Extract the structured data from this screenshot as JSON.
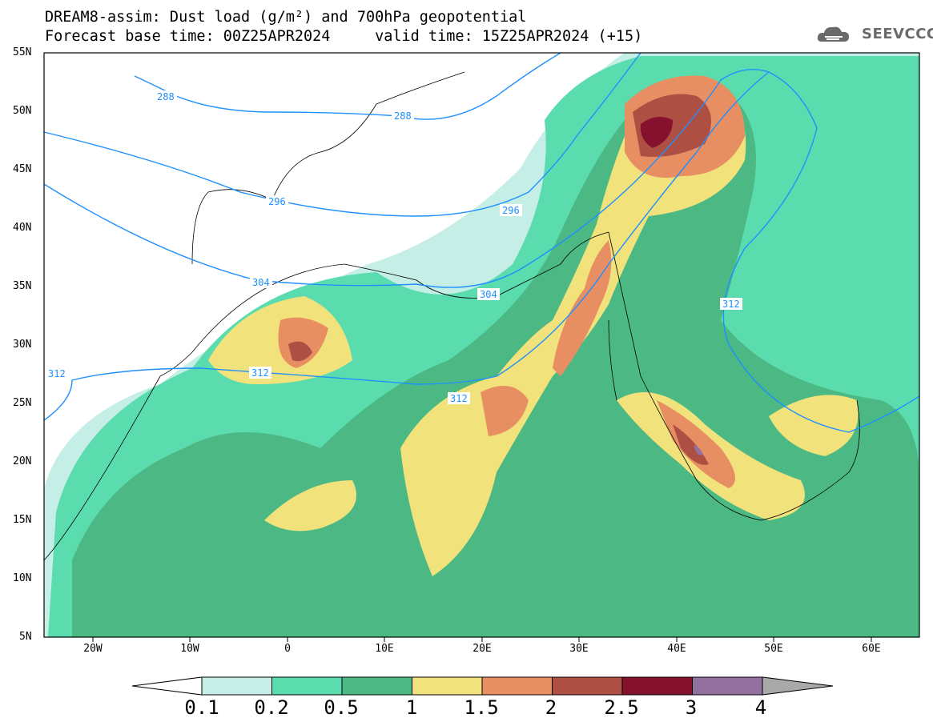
{
  "header": {
    "line1": "DREAM8-assim: Dust load (g/m²) and 700hPa geopotential",
    "line2": "Forecast base time: 00Z25APR2024     valid time: 15Z25APR2024 (+15)"
  },
  "logo": {
    "text": "SEEVCCC",
    "icon": "cloud-icon"
  },
  "axes": {
    "lat_labels": [
      "55N",
      "50N",
      "45N",
      "40N",
      "35N",
      "30N",
      "25N",
      "20N",
      "15N",
      "10N",
      "5N"
    ],
    "lon_labels": [
      "20W",
      "10W",
      "0",
      "10E",
      "20E",
      "30E",
      "40E",
      "50E",
      "60E"
    ],
    "lat_range": [
      5,
      55
    ],
    "lon_range": [
      -25,
      65
    ]
  },
  "contours": {
    "color": "#1e90ff",
    "labels": [
      "288",
      "288",
      "296",
      "296",
      "304",
      "304",
      "312",
      "312",
      "312",
      "312"
    ]
  },
  "colorbar": {
    "labels": [
      "0.1",
      "0.2",
      "0.5",
      "1",
      "1.5",
      "2",
      "2.5",
      "3",
      "4"
    ],
    "colors": [
      "#ffffff",
      "#c4eee6",
      "#5bdcaf",
      "#4cb985",
      "#f2e27b",
      "#e88e63",
      "#ae4f44",
      "#85112c",
      "#92719f",
      "#a9a9a9"
    ]
  }
}
